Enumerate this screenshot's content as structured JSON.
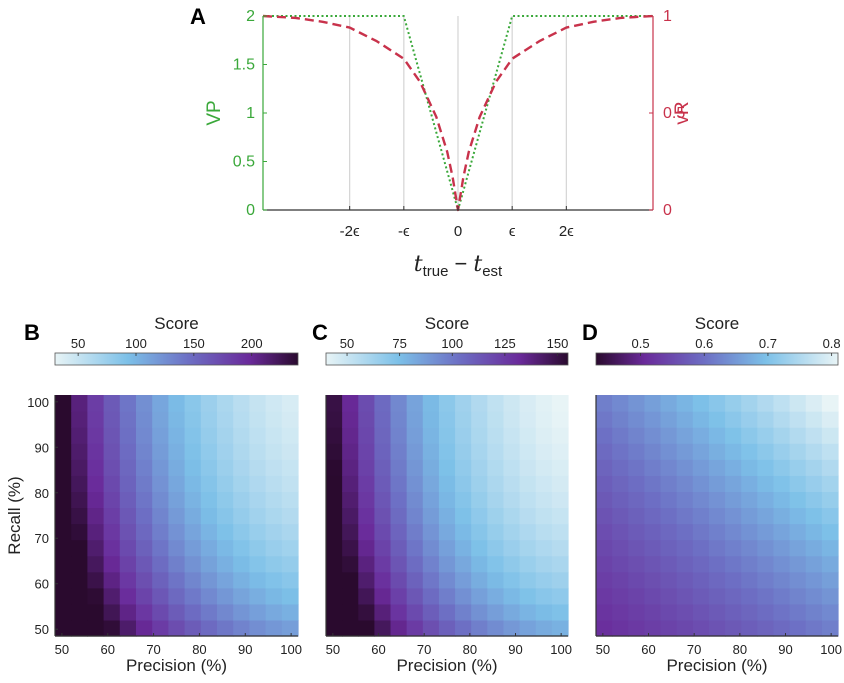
{
  "chart_data": [
    {
      "panel_label": "A",
      "type": "line",
      "xlabel": "t_true − t_est",
      "xlabel_parts": {
        "t1": "t",
        "sub1": "true",
        "minus": "−",
        "t2": "t",
        "sub2": "est"
      },
      "xticks": [
        {
          "value": -2,
          "label": "-2ϵ"
        },
        {
          "value": -1,
          "label": "-ϵ"
        },
        {
          "value": 0,
          "label": "0"
        },
        {
          "value": 1,
          "label": "ϵ"
        },
        {
          "value": 2,
          "label": "2ϵ"
        }
      ],
      "xlim": [
        -3.6,
        3.6
      ],
      "ylabel_left": "VP",
      "ylabel_right": "vR",
      "ylim_left": [
        0,
        2
      ],
      "ylim_right": [
        0,
        1
      ],
      "yticks_left": [
        "0",
        "0.5",
        "1",
        "1.5",
        "2"
      ],
      "yticks_right": [
        "0",
        "0.5",
        "1"
      ],
      "grid": "vertical at ticks",
      "series": [
        {
          "axis": "left",
          "style": "dotted",
          "color": "#3aa83a",
          "x": [
            -3.6,
            -1,
            0,
            1,
            3.6
          ],
          "y": [
            2,
            2,
            0,
            2,
            2
          ]
        },
        {
          "axis": "right",
          "style": "dashed",
          "color": "#c8324b",
          "x": [
            -3.6,
            -3,
            -2.5,
            -2,
            -1.5,
            -1,
            -0.7,
            -0.4,
            -0.2,
            -0.1,
            0,
            0.1,
            0.2,
            0.4,
            0.7,
            1,
            1.5,
            2,
            2.5,
            3,
            3.6
          ],
          "y": [
            1.0,
            0.99,
            0.97,
            0.94,
            0.87,
            0.78,
            0.66,
            0.48,
            0.3,
            0.17,
            0.0,
            0.17,
            0.3,
            0.48,
            0.66,
            0.78,
            0.87,
            0.94,
            0.97,
            0.99,
            1.0
          ]
        }
      ]
    },
    {
      "panel_label": "B",
      "type": "heatmap",
      "xlabel": "Precision (%)",
      "ylabel": "Recall (%)",
      "xticks": [
        "50",
        "60",
        "70",
        "80",
        "90",
        "100"
      ],
      "yticks": [
        "50",
        "60",
        "70",
        "80",
        "90",
        "100"
      ],
      "xlim": [
        48.5,
        101.5
      ],
      "ylim": [
        48.5,
        101.5
      ],
      "grid_size": 15,
      "colorbar": {
        "title": "Score",
        "min": 30,
        "max": 240,
        "reversed": false,
        "ticks": [
          {
            "value": 50,
            "label": "50"
          },
          {
            "value": 100,
            "label": "100"
          },
          {
            "value": 150,
            "label": "150"
          },
          {
            "value": 200,
            "label": "200"
          }
        ]
      }
    },
    {
      "panel_label": "C",
      "type": "heatmap",
      "xlabel": "Precision (%)",
      "ylabel": "",
      "xticks": [
        "50",
        "60",
        "70",
        "80",
        "90",
        "100"
      ],
      "yticks": [],
      "xlim": [
        48.5,
        101.5
      ],
      "ylim": [
        48.5,
        101.5
      ],
      "grid_size": 15,
      "colorbar": {
        "title": "Score",
        "min": 40,
        "max": 155,
        "reversed": false,
        "ticks": [
          {
            "value": 50,
            "label": "50"
          },
          {
            "value": 75,
            "label": "75"
          },
          {
            "value": 100,
            "label": "100"
          },
          {
            "value": 125,
            "label": "125"
          },
          {
            "value": 150,
            "label": "150"
          }
        ]
      }
    },
    {
      "panel_label": "D",
      "type": "heatmap",
      "xlabel": "Precision (%)",
      "ylabel": "",
      "xticks": [
        "50",
        "60",
        "70",
        "80",
        "90",
        "100"
      ],
      "yticks": [],
      "xlim": [
        48.5,
        101.5
      ],
      "ylim": [
        48.5,
        101.5
      ],
      "grid_size": 15,
      "colorbar": {
        "title": "Score",
        "min": 0.43,
        "max": 0.81,
        "reversed": true,
        "ticks": [
          {
            "value": 0.5,
            "label": "0.5"
          },
          {
            "value": 0.6,
            "label": "0.6"
          },
          {
            "value": 0.7,
            "label": "0.7"
          },
          {
            "value": 0.8,
            "label": "0.8"
          }
        ]
      }
    }
  ]
}
